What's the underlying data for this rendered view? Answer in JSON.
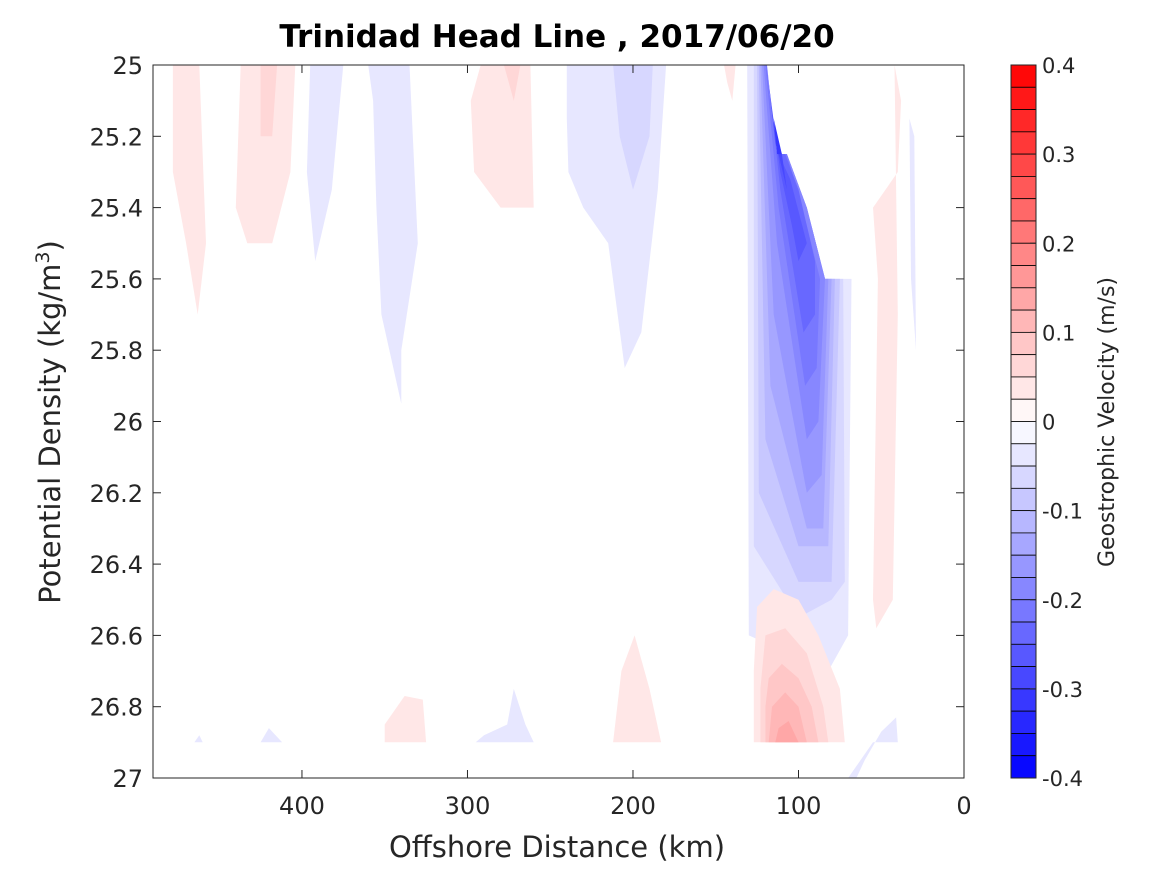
{
  "chart_data": {
    "type": "heatmap",
    "title": "Trinidad Head Line , 2017/06/20",
    "xlabel": "Offshore Distance (km)",
    "ylabel": "Potential Density (kg/m",
    "ylabel_sup": "3",
    "ylabel_end": ")",
    "xlim": [
      490,
      0
    ],
    "ylim": [
      27,
      25
    ],
    "y_reversed": true,
    "x_reversed": true,
    "xticks": [
      400,
      300,
      200,
      100,
      0
    ],
    "xtick_labels": [
      "400",
      "300",
      "200",
      "100",
      "0"
    ],
    "yticks": [
      25,
      25.2,
      25.4,
      25.6,
      25.8,
      26,
      26.2,
      26.4,
      26.6,
      26.8,
      27
    ],
    "ytick_labels": [
      "25",
      "25.2",
      "25.4",
      "25.6",
      "25.8",
      "26",
      "26.2",
      "26.4",
      "26.6",
      "26.8",
      "27"
    ],
    "colorbar": {
      "label": "Geostrophic Velocity (m/s)",
      "range": [
        -0.4,
        0.4
      ],
      "ticks": [
        0.4,
        0.3,
        0.2,
        0.1,
        0,
        -0.1,
        -0.2,
        -0.3,
        -0.4
      ],
      "tick_labels": [
        "0.4",
        "0.3",
        "0.2",
        "0.1",
        "0",
        "-0.1",
        "-0.2",
        "-0.3",
        "-0.4"
      ],
      "levels": 32,
      "neg_color": "#0000ff",
      "pos_color": "#ff0000",
      "zero_color": "#ffffff"
    },
    "contours": [
      {
        "v": 0.0375,
        "pts": [
          [
            478,
            25
          ],
          [
            462,
            25
          ],
          [
            458,
            25.5
          ],
          [
            463,
            25.7
          ],
          [
            470,
            25.5
          ],
          [
            478,
            25.3
          ]
        ]
      },
      {
        "v": 0.0375,
        "pts": [
          [
            437,
            25
          ],
          [
            404,
            25
          ],
          [
            407,
            25.3
          ],
          [
            418,
            25.5
          ],
          [
            433,
            25.5
          ],
          [
            440,
            25.4
          ]
        ]
      },
      {
        "v": 0.0625,
        "pts": [
          [
            425,
            25
          ],
          [
            415,
            25
          ],
          [
            418,
            25.2
          ],
          [
            425,
            25.2
          ]
        ]
      },
      {
        "v": -0.0375,
        "pts": [
          [
            395,
            25
          ],
          [
            375,
            25
          ],
          [
            382,
            25.35
          ],
          [
            392,
            25.55
          ],
          [
            397,
            25.3
          ]
        ]
      },
      {
        "v": -0.0375,
        "pts": [
          [
            360,
            25
          ],
          [
            335,
            25
          ],
          [
            330,
            25.5
          ],
          [
            340,
            25.8
          ],
          [
            340,
            25.95
          ],
          [
            352,
            25.7
          ],
          [
            355,
            25.4
          ],
          [
            357,
            25.1
          ]
        ]
      },
      {
        "v": 0.0375,
        "pts": [
          [
            292,
            25
          ],
          [
            262,
            25
          ],
          [
            260,
            25.4
          ],
          [
            280,
            25.4
          ],
          [
            296,
            25.3
          ],
          [
            298,
            25.1
          ]
        ]
      },
      {
        "v": 0.0625,
        "pts": [
          [
            278,
            25
          ],
          [
            268,
            25
          ],
          [
            272,
            25.1
          ]
        ]
      },
      {
        "v": -0.0375,
        "pts": [
          [
            240,
            25
          ],
          [
            180,
            25
          ],
          [
            185,
            25.35
          ],
          [
            195,
            25.75
          ],
          [
            205,
            25.85
          ],
          [
            215,
            25.5
          ],
          [
            230,
            25.4
          ],
          [
            239,
            25.3
          ],
          [
            240,
            25.15
          ]
        ]
      },
      {
        "v": -0.0625,
        "pts": [
          [
            212,
            25
          ],
          [
            188,
            25
          ],
          [
            190,
            25.2
          ],
          [
            200,
            25.35
          ],
          [
            208,
            25.2
          ]
        ]
      },
      {
        "v": 0.0375,
        "pts": [
          [
            145,
            25
          ],
          [
            138,
            25
          ],
          [
            140,
            25.1
          ],
          [
            143,
            25.05
          ]
        ]
      },
      {
        "v": -0.0375,
        "pts": [
          [
            131,
            25
          ],
          [
            130,
            26.6
          ],
          [
            82,
            26.7
          ],
          [
            70,
            26.6
          ],
          [
            68,
            25.6
          ],
          [
            70,
            25.6
          ],
          [
            75,
            25.6
          ],
          [
            84,
            25.6
          ],
          [
            95,
            25.4
          ],
          [
            107,
            25.25
          ],
          [
            113,
            25.25
          ],
          [
            117,
            25.1
          ],
          [
            123,
            25.0
          ]
        ]
      },
      {
        "v": -0.0625,
        "pts": [
          [
            127,
            25
          ],
          [
            127,
            26.35
          ],
          [
            100,
            26.55
          ],
          [
            80,
            26.5
          ],
          [
            72,
            26.45
          ],
          [
            73,
            25.6
          ],
          [
            84,
            25.6
          ],
          [
            95,
            25.4
          ],
          [
            107,
            25.25
          ],
          [
            113,
            25.25
          ],
          [
            117,
            25.1
          ],
          [
            123,
            25.0
          ]
        ]
      },
      {
        "v": -0.0875,
        "pts": [
          [
            125,
            25
          ],
          [
            124,
            26.2
          ],
          [
            100,
            26.45
          ],
          [
            80,
            26.45
          ],
          [
            75,
            25.6
          ],
          [
            84,
            25.6
          ],
          [
            95,
            25.4
          ],
          [
            107,
            25.25
          ],
          [
            113,
            25.25
          ],
          [
            117,
            25.1
          ],
          [
            123,
            25.0
          ]
        ]
      },
      {
        "v": -0.1125,
        "pts": [
          [
            124,
            25
          ],
          [
            120,
            26.05
          ],
          [
            100,
            26.35
          ],
          [
            82,
            26.35
          ],
          [
            78,
            25.6
          ],
          [
            84,
            25.6
          ],
          [
            95,
            25.4
          ],
          [
            107,
            25.25
          ],
          [
            113,
            25.25
          ],
          [
            117,
            25.1
          ],
          [
            122,
            25.0
          ]
        ]
      },
      {
        "v": -0.1375,
        "pts": [
          [
            123,
            25
          ],
          [
            117,
            25.9
          ],
          [
            95,
            26.3
          ],
          [
            85,
            26.3
          ],
          [
            80,
            25.6
          ],
          [
            84,
            25.6
          ],
          [
            95,
            25.4
          ],
          [
            107,
            25.25
          ],
          [
            113,
            25.25
          ],
          [
            117,
            25.1
          ],
          [
            121,
            25.0
          ]
        ]
      },
      {
        "v": -0.1625,
        "pts": [
          [
            122,
            25
          ],
          [
            115,
            25.7
          ],
          [
            95,
            26.2
          ],
          [
            86,
            26.15
          ],
          [
            82,
            25.6
          ],
          [
            84,
            25.6
          ],
          [
            95,
            25.4
          ],
          [
            107,
            25.25
          ],
          [
            113,
            25.25
          ],
          [
            117,
            25.1
          ],
          [
            120,
            25.0
          ]
        ]
      },
      {
        "v": -0.1875,
        "pts": [
          [
            121,
            25
          ],
          [
            113,
            25.5
          ],
          [
            95,
            26.05
          ],
          [
            88,
            26.0
          ],
          [
            84,
            25.6
          ],
          [
            95,
            25.4
          ],
          [
            107,
            25.25
          ],
          [
            113,
            25.25
          ],
          [
            117,
            25.1
          ],
          [
            120,
            25.0
          ]
        ]
      },
      {
        "v": -0.2125,
        "pts": [
          [
            120,
            25
          ],
          [
            112,
            25.4
          ],
          [
            96,
            25.9
          ],
          [
            89,
            25.85
          ],
          [
            87,
            25.6
          ],
          [
            95,
            25.45
          ],
          [
            107,
            25.25
          ],
          [
            113,
            25.25
          ],
          [
            117,
            25.1
          ],
          [
            119,
            25.0
          ]
        ]
      },
      {
        "v": -0.2375,
        "pts": [
          [
            119,
            25
          ],
          [
            111,
            25.35
          ],
          [
            97,
            25.75
          ],
          [
            90,
            25.7
          ],
          [
            90,
            25.55
          ],
          [
            100,
            25.35
          ],
          [
            108,
            25.25
          ],
          [
            113,
            25.25
          ],
          [
            117,
            25.1
          ],
          [
            119,
            25.0
          ]
        ]
      },
      {
        "v": -0.2625,
        "pts": [
          [
            118,
            25.05
          ],
          [
            111,
            25.3
          ],
          [
            104,
            25.45
          ],
          [
            100,
            25.55
          ],
          [
            95,
            25.5
          ],
          [
            105,
            25.32
          ],
          [
            112,
            25.25
          ],
          [
            114,
            25.22
          ]
        ]
      },
      {
        "v": -0.2875,
        "pts": [
          [
            117,
            25.1
          ],
          [
            112,
            25.25
          ],
          [
            107,
            25.35
          ],
          [
            110,
            25.25
          ],
          [
            114,
            25.2
          ]
        ]
      },
      {
        "v": -0.3125,
        "pts": [
          [
            115,
            25.15
          ],
          [
            110,
            25.25
          ],
          [
            113,
            25.25
          ]
        ]
      },
      {
        "v": 0.0375,
        "pts": [
          [
            350,
            26.9
          ],
          [
            325,
            26.9
          ],
          [
            327,
            26.78
          ],
          [
            338,
            26.77
          ],
          [
            350,
            26.85
          ]
        ]
      },
      {
        "v": -0.0375,
        "pts": [
          [
            295,
            26.9
          ],
          [
            260,
            26.9
          ],
          [
            265,
            26.85
          ],
          [
            272,
            26.75
          ],
          [
            276,
            26.85
          ],
          [
            290,
            26.88
          ]
        ]
      },
      {
        "v": 0.0375,
        "pts": [
          [
            212,
            26.9
          ],
          [
            183,
            26.9
          ],
          [
            190,
            26.75
          ],
          [
            199,
            26.6
          ],
          [
            207,
            26.7
          ]
        ]
      },
      {
        "v": -0.0375,
        "pts": [
          [
            425,
            26.9
          ],
          [
            412,
            26.9
          ],
          [
            420,
            26.86
          ]
        ]
      },
      {
        "v": -0.0375,
        "pts": [
          [
            465,
            26.9
          ],
          [
            460,
            26.9
          ],
          [
            462,
            26.88
          ]
        ]
      },
      {
        "v": 0.0375,
        "pts": [
          [
            127,
            26.9
          ],
          [
            72,
            26.9
          ],
          [
            75,
            26.75
          ],
          [
            88,
            26.6
          ],
          [
            100,
            26.5
          ],
          [
            115,
            26.47
          ],
          [
            125,
            26.52
          ],
          [
            127,
            26.7
          ]
        ]
      },
      {
        "v": 0.0625,
        "pts": [
          [
            123,
            26.9
          ],
          [
            82,
            26.9
          ],
          [
            85,
            26.8
          ],
          [
            95,
            26.65
          ],
          [
            108,
            26.58
          ],
          [
            120,
            26.6
          ],
          [
            123,
            26.75
          ]
        ]
      },
      {
        "v": 0.0875,
        "pts": [
          [
            120,
            26.9
          ],
          [
            88,
            26.9
          ],
          [
            92,
            26.8
          ],
          [
            100,
            26.72
          ],
          [
            110,
            26.68
          ],
          [
            118,
            26.72
          ],
          [
            120,
            26.8
          ]
        ]
      },
      {
        "v": 0.1125,
        "pts": [
          [
            118,
            26.9
          ],
          [
            95,
            26.9
          ],
          [
            100,
            26.8
          ],
          [
            108,
            26.76
          ],
          [
            116,
            26.8
          ]
        ]
      },
      {
        "v": 0.1375,
        "pts": [
          [
            114,
            26.9
          ],
          [
            100,
            26.9
          ],
          [
            106,
            26.84
          ],
          [
            112,
            26.86
          ]
        ]
      },
      {
        "v": -0.0375,
        "pts": [
          [
            70,
            27
          ],
          [
            55,
            26.9
          ],
          [
            40,
            26.9
          ],
          [
            41,
            26.83
          ],
          [
            50,
            26.87
          ],
          [
            60,
            26.95
          ],
          [
            65,
            27
          ]
        ]
      },
      {
        "v": 0.0375,
        "pts": [
          [
            55,
            25.4
          ],
          [
            40,
            25.3
          ],
          [
            38,
            25.1
          ],
          [
            42,
            25.0
          ],
          [
            40,
            25.7
          ],
          [
            43,
            26.5
          ],
          [
            53,
            26.58
          ],
          [
            55,
            26.5
          ],
          [
            52,
            25.6
          ]
        ]
      },
      {
        "v": -0.0375,
        "pts": [
          [
            33,
            25.15
          ],
          [
            30,
            25.2
          ],
          [
            29,
            25.8
          ],
          [
            32,
            25.6
          ]
        ]
      }
    ]
  }
}
